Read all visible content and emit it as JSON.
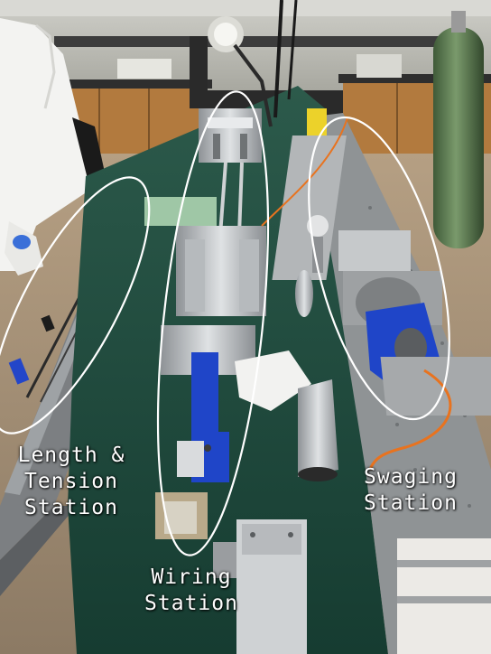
{
  "labels": {
    "length_tension": {
      "line1": "Length &",
      "line2": "Tension",
      "line3": "Station"
    },
    "swaging": {
      "line1": "Swaging",
      "line2": "Station"
    },
    "wiring": {
      "line1": "Wiring",
      "line2": "Station"
    }
  },
  "colors": {
    "table_top": "#1f4a3d",
    "steel": "#b9bcbf",
    "anodized_blue": "#1f45c8",
    "cable_orange": "#e8731f",
    "gas_cylinder": "#5c7a52",
    "highlight_ellipse": "#ffffff"
  }
}
